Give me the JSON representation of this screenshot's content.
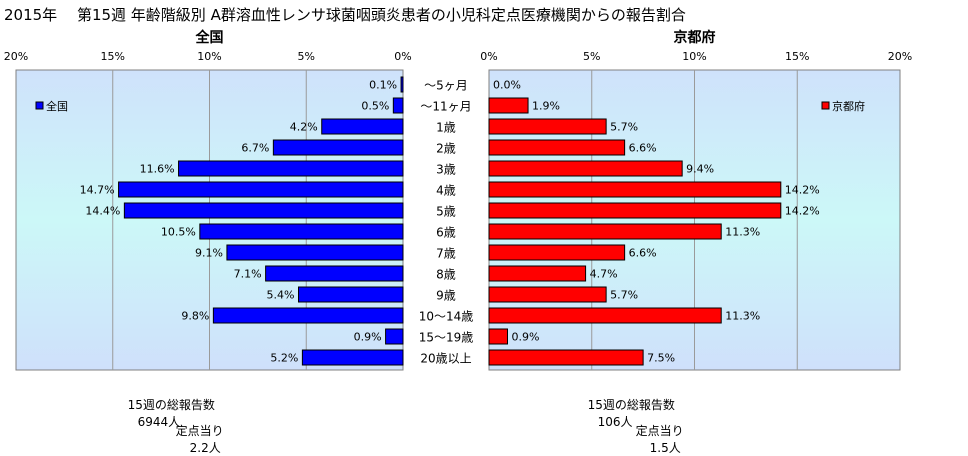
{
  "chart_data": {
    "type": "bar",
    "title": "2015年　 第15週 年齢階級別 A群溶血性レンサ球菌咽頭炎患者の小児科定点医療機関からの報告割合",
    "categories": [
      "～5ヶ月",
      "～11ヶ月",
      "1歳",
      "2歳",
      "3歳",
      "4歳",
      "5歳",
      "6歳",
      "7歳",
      "8歳",
      "9歳",
      "10～14歳",
      "15～19歳",
      "20歳以上"
    ],
    "unit": "%",
    "xlim": [
      0,
      20
    ],
    "xticks": [
      "0%",
      "5%",
      "10%",
      "15%",
      "20%"
    ],
    "grid": true,
    "panels": [
      {
        "heading": "全国",
        "legend": "全国",
        "legend_position": "top-left",
        "direction": "left",
        "color": "#0000ff",
        "values": [
          0.1,
          0.5,
          4.2,
          6.7,
          11.6,
          14.7,
          14.4,
          10.5,
          9.1,
          7.1,
          5.4,
          9.8,
          0.9,
          5.2
        ],
        "labels": [
          "0.1%",
          "0.5%",
          "4.2%",
          "6.7%",
          "11.6%",
          "14.7%",
          "14.4%",
          "10.5%",
          "9.1%",
          "7.1%",
          "5.4%",
          "9.8%",
          "0.9%",
          "5.2%"
        ]
      },
      {
        "heading": "京都府",
        "legend": "京都府",
        "legend_position": "top-right",
        "direction": "right",
        "color": "#ff0000",
        "values": [
          0.0,
          1.9,
          5.7,
          6.6,
          9.4,
          14.2,
          14.2,
          11.3,
          6.6,
          4.7,
          5.7,
          11.3,
          0.9,
          7.5
        ],
        "labels": [
          "0.0%",
          "1.9%",
          "5.7%",
          "6.6%",
          "9.4%",
          "14.2%",
          "14.2%",
          "11.3%",
          "6.6%",
          "4.7%",
          "5.7%",
          "11.3%",
          "0.9%",
          "7.5%"
        ]
      }
    ]
  },
  "footer": {
    "national": {
      "total_label": "15週の総報告数",
      "total_value": "6944人",
      "per_label": "定点当り",
      "per_value": "2.2人"
    },
    "kyoto": {
      "total_label": "15週の総報告数",
      "total_value": "106人",
      "per_label": "定点当り",
      "per_value": "1.5人"
    }
  }
}
